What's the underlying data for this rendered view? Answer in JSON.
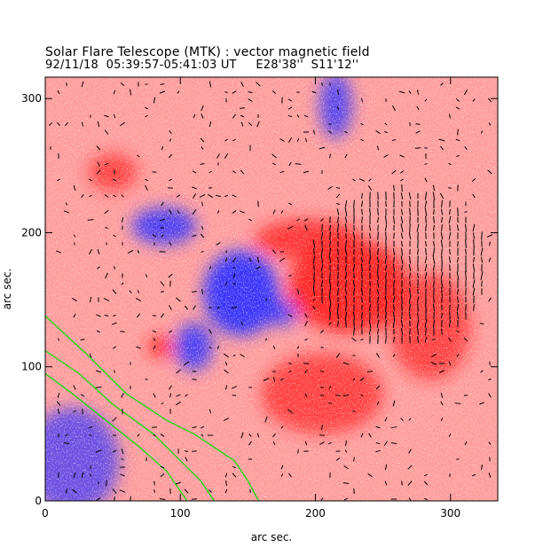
{
  "chart_data": {
    "type": "heatmap",
    "title": "Solar Flare Telescope (MTK) : vector magnetic field",
    "subtitle": "92/11/18  05:39:57-05:41:03 UT     E28'38''  S11'12''",
    "xlabel": "arc sec.",
    "ylabel": "arc sec.",
    "xlim": [
      0,
      335
    ],
    "ylim": [
      0,
      316
    ],
    "xticks": [
      "0",
      "100",
      "200",
      "300"
    ],
    "yticks": [
      "0",
      "100",
      "200",
      "300"
    ],
    "colors": {
      "positive": "#ff2020",
      "negative": "#3030ff",
      "background": "#ffb0b0",
      "contour": "#00e000",
      "vectors": "#000000"
    },
    "regions": [
      {
        "polarity": "negative",
        "x": 145,
        "y": 155,
        "rx": 28,
        "ry": 32,
        "strength": 1.0
      },
      {
        "polarity": "negative",
        "x": 175,
        "y": 140,
        "rx": 12,
        "ry": 10,
        "strength": 0.7
      },
      {
        "polarity": "negative",
        "x": 110,
        "y": 115,
        "rx": 14,
        "ry": 18,
        "strength": 0.8
      },
      {
        "polarity": "negative",
        "x": 88,
        "y": 205,
        "rx": 24,
        "ry": 14,
        "strength": 0.8
      },
      {
        "polarity": "negative",
        "x": 215,
        "y": 295,
        "rx": 12,
        "ry": 25,
        "strength": 0.7
      },
      {
        "polarity": "negative",
        "x": 20,
        "y": 30,
        "rx": 35,
        "ry": 40,
        "strength": 0.5
      },
      {
        "polarity": "positive",
        "x": 225,
        "y": 160,
        "rx": 45,
        "ry": 35,
        "strength": 1.0
      },
      {
        "polarity": "positive",
        "x": 195,
        "y": 195,
        "rx": 40,
        "ry": 15,
        "strength": 0.8
      },
      {
        "polarity": "positive",
        "x": 85,
        "y": 115,
        "rx": 9,
        "ry": 8,
        "strength": 1.0
      },
      {
        "polarity": "positive",
        "x": 50,
        "y": 245,
        "rx": 18,
        "ry": 14,
        "strength": 0.6
      },
      {
        "polarity": "positive",
        "x": 205,
        "y": 80,
        "rx": 45,
        "ry": 30,
        "strength": 0.6
      },
      {
        "polarity": "positive",
        "x": 285,
        "y": 130,
        "rx": 30,
        "ry": 40,
        "strength": 0.5
      }
    ],
    "contours": [
      [
        [
          0,
          138
        ],
        [
          30,
          110
        ],
        [
          60,
          80
        ],
        [
          90,
          60
        ],
        [
          110,
          50
        ],
        [
          140,
          30
        ],
        [
          150,
          15
        ],
        [
          158,
          0
        ]
      ],
      [
        [
          0,
          112
        ],
        [
          25,
          95
        ],
        [
          50,
          72
        ],
        [
          80,
          50
        ],
        [
          100,
          30
        ],
        [
          115,
          15
        ],
        [
          125,
          0
        ]
      ],
      [
        [
          0,
          95
        ],
        [
          20,
          80
        ],
        [
          45,
          60
        ],
        [
          70,
          40
        ],
        [
          90,
          22
        ],
        [
          105,
          0
        ]
      ]
    ]
  }
}
